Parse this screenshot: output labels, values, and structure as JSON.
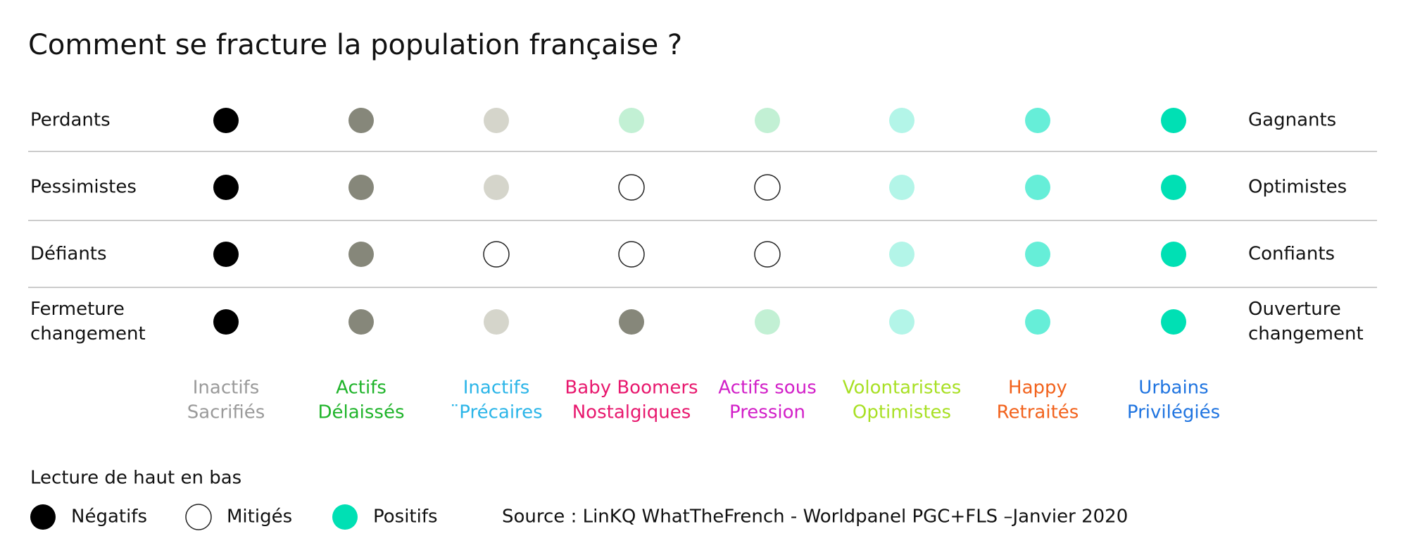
{
  "title": "Comment se fracture la population française ?",
  "rows": [
    {
      "left": [
        "Perdants"
      ],
      "right": [
        "Gagnants"
      ],
      "dots": [
        "#000000",
        "#86877a",
        "#d5d5cb",
        "#c2f0d4",
        "#c2f0d4",
        "#b3f5e8",
        "#66eed8",
        "#00e0b4"
      ]
    },
    {
      "left": [
        "Pessimistes"
      ],
      "right": [
        "Optimistes"
      ],
      "dots": [
        "#000000",
        "#86877a",
        "#d5d5cb",
        "#ffffff",
        "#ffffff",
        "#b3f5e8",
        "#66eed8",
        "#00e0b4"
      ]
    },
    {
      "left": [
        "Défiants"
      ],
      "right": [
        "Confiants"
      ],
      "dots": [
        "#000000",
        "#86877a",
        "#ffffff",
        "#ffffff",
        "#ffffff",
        "#b3f5e8",
        "#66eed8",
        "#00e0b4"
      ]
    },
    {
      "left": [
        "Fermeture",
        "changement"
      ],
      "right": [
        "Ouverture",
        "changement"
      ],
      "dots": [
        "#000000",
        "#86877a",
        "#d5d5cb",
        "#86877a",
        "#c2f0d4",
        "#b3f5e8",
        "#66eed8",
        "#00e0b4"
      ]
    }
  ],
  "segments": [
    {
      "lines": [
        "Inactifs",
        "Sacrifiés"
      ],
      "color": "#9a9a9a"
    },
    {
      "lines": [
        "Actifs",
        "Délaissés"
      ],
      "color": "#1fb42a"
    },
    {
      "lines": [
        "Inactifs",
        "¨Précaires"
      ],
      "color": "#2bb5e8"
    },
    {
      "lines": [
        "Baby Boomers",
        "Nostalgiques"
      ],
      "color": "#e8186e"
    },
    {
      "lines": [
        "Actifs sous",
        "Pression"
      ],
      "color": "#d21fc8"
    },
    {
      "lines": [
        "Volontaristes",
        "Optimistes"
      ],
      "color": "#a8e024"
    },
    {
      "lines": [
        "Happy",
        "Retraités"
      ],
      "color": "#f2621c"
    },
    {
      "lines": [
        "Urbains",
        "Privilégiés"
      ],
      "color": "#1f74e0"
    }
  ],
  "legend": {
    "heading": "Lecture de haut en bas",
    "items": [
      {
        "label": "Négatifs",
        "color": "#000000"
      },
      {
        "label": "Mitigés",
        "color": "#ffffff"
      },
      {
        "label": "Positifs",
        "color": "#00e0b4"
      }
    ]
  },
  "source": "Source : LinKQ WhatTheFrench - Worldpanel PGC+FLS –Janvier 2020"
}
